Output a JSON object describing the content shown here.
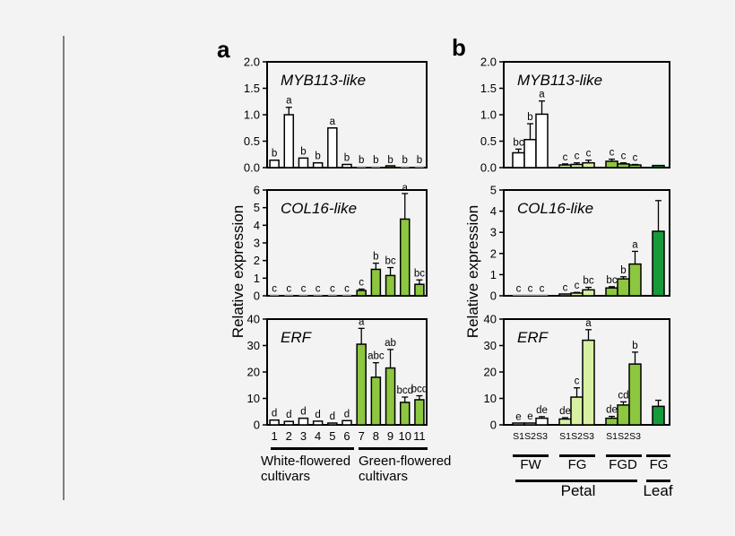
{
  "figure": {
    "background": "#f3f3f4",
    "divider_color": "#7f7f7f",
    "colors": {
      "white": "#ffffff",
      "light_green": "#d7f0a2",
      "mid_green": "#8dc63f",
      "dark_green": "#179a3a",
      "bar_stroke": "#000000",
      "faint_bar": "#9a9a9a"
    }
  },
  "panel_a": {
    "label": "a",
    "ylabel": "Relative expression",
    "cultivar_groups": [
      {
        "line1": "White-flowered",
        "line2": "cultivars"
      },
      {
        "line1": "Green-flowered",
        "line2": "cultivars"
      }
    ]
  },
  "panel_b": {
    "label": "b",
    "ylabel": "Relative expression",
    "stage_labels": [
      "S1",
      "S2",
      "S3"
    ],
    "tissue_labels": [
      "FW",
      "FG",
      "FGD",
      "FG"
    ],
    "organ_labels": [
      "Petal",
      "Leaf"
    ]
  },
  "chart_data": [
    {
      "panel": "a",
      "type": "bar",
      "title": "MYB113-like",
      "ylim": [
        0,
        2.0
      ],
      "yticks": {
        "values": [
          0,
          0.5,
          1.0,
          1.5,
          2.0
        ],
        "labels": [
          "0.0",
          "0.5",
          "1.0",
          "1.5",
          "2.0"
        ]
      },
      "categories": [
        "1",
        "2",
        "3",
        "4",
        "5",
        "6",
        "7",
        "8",
        "9",
        "10",
        "11"
      ],
      "bars": [
        {
          "category": "1",
          "value": 0.14,
          "error": 0,
          "letter": "b",
          "color": "white"
        },
        {
          "category": "2",
          "value": 1.0,
          "error": 0.14,
          "letter": "a",
          "color": "white"
        },
        {
          "category": "3",
          "value": 0.18,
          "error": 0,
          "letter": "b",
          "color": "white"
        },
        {
          "category": "4",
          "value": 0.09,
          "error": 0,
          "letter": "b",
          "color": "white"
        },
        {
          "category": "5",
          "value": 0.75,
          "error": 0,
          "letter": "a",
          "color": "white"
        },
        {
          "category": "6",
          "value": 0.06,
          "error": 0,
          "letter": "b",
          "color": "white"
        },
        {
          "category": "7",
          "value": 0.015,
          "error": 0,
          "letter": "b",
          "color": "mid_green"
        },
        {
          "category": "8",
          "value": 0.015,
          "error": 0,
          "letter": "b",
          "color": "mid_green"
        },
        {
          "category": "9",
          "value": 0.02,
          "error": 0,
          "letter": "b",
          "color": "mid_green"
        },
        {
          "category": "10",
          "value": 0.015,
          "error": 0,
          "letter": "b",
          "color": "mid_green"
        },
        {
          "category": "11",
          "value": 0.015,
          "error": 0,
          "letter": "b",
          "color": "mid_green"
        }
      ]
    },
    {
      "panel": "a",
      "type": "bar",
      "title": "COL16-like",
      "ylim": [
        0,
        6
      ],
      "yticks": {
        "values": [
          0,
          1,
          2,
          3,
          4,
          5,
          6
        ],
        "labels": [
          "0",
          "1",
          "2",
          "3",
          "4",
          "5",
          "6"
        ]
      },
      "categories": [
        "1",
        "2",
        "3",
        "4",
        "5",
        "6",
        "7",
        "8",
        "9",
        "10",
        "11"
      ],
      "bars": [
        {
          "category": "1",
          "value": 0.03,
          "error": 0,
          "letter": "c",
          "color": "white"
        },
        {
          "category": "2",
          "value": 0.03,
          "error": 0,
          "letter": "c",
          "color": "white"
        },
        {
          "category": "3",
          "value": 0.03,
          "error": 0,
          "letter": "c",
          "color": "white"
        },
        {
          "category": "4",
          "value": 0.03,
          "error": 0,
          "letter": "c",
          "color": "white"
        },
        {
          "category": "5",
          "value": 0.03,
          "error": 0,
          "letter": "c",
          "color": "white"
        },
        {
          "category": "6",
          "value": 0.03,
          "error": 0,
          "letter": "c",
          "color": "white"
        },
        {
          "category": "7",
          "value": 0.3,
          "error": 0.08,
          "letter": "c",
          "color": "mid_green"
        },
        {
          "category": "8",
          "value": 1.5,
          "error": 0.35,
          "letter": "b",
          "color": "mid_green"
        },
        {
          "category": "9",
          "value": 1.15,
          "error": 0.45,
          "letter": "bc",
          "color": "mid_green"
        },
        {
          "category": "10",
          "value": 4.35,
          "error": 1.45,
          "letter": "a",
          "color": "mid_green"
        },
        {
          "category": "11",
          "value": 0.65,
          "error": 0.25,
          "letter": "bc",
          "color": "mid_green"
        }
      ]
    },
    {
      "panel": "a",
      "type": "bar",
      "title": "ERF",
      "ylim": [
        0,
        40
      ],
      "yticks": {
        "values": [
          0,
          10,
          20,
          30,
          40
        ],
        "labels": [
          "0",
          "10",
          "20",
          "30",
          "40"
        ]
      },
      "categories": [
        "1",
        "2",
        "3",
        "4",
        "5",
        "6",
        "7",
        "8",
        "9",
        "10",
        "11"
      ],
      "bars": [
        {
          "category": "1",
          "value": 1.8,
          "error": 0,
          "letter": "d",
          "color": "white"
        },
        {
          "category": "2",
          "value": 1.3,
          "error": 0,
          "letter": "d",
          "color": "white"
        },
        {
          "category": "3",
          "value": 2.5,
          "error": 0,
          "letter": "d",
          "color": "white"
        },
        {
          "category": "4",
          "value": 1.4,
          "error": 0,
          "letter": "d",
          "color": "white"
        },
        {
          "category": "5",
          "value": 0.6,
          "error": 0,
          "letter": "d",
          "color": "white"
        },
        {
          "category": "6",
          "value": 1.6,
          "error": 0,
          "letter": "d",
          "color": "white"
        },
        {
          "category": "7",
          "value": 30.5,
          "error": 6.0,
          "letter": "a",
          "color": "mid_green"
        },
        {
          "category": "8",
          "value": 18.0,
          "error": 5.5,
          "letter": "abc",
          "color": "mid_green"
        },
        {
          "category": "9",
          "value": 21.5,
          "error": 7.0,
          "letter": "ab",
          "color": "mid_green"
        },
        {
          "category": "10",
          "value": 8.5,
          "error": 2.0,
          "letter": "bcd",
          "color": "mid_green"
        },
        {
          "category": "11",
          "value": 9.5,
          "error": 1.5,
          "letter": "bcd",
          "color": "mid_green"
        }
      ]
    },
    {
      "panel": "b",
      "type": "bar",
      "title": "MYB113-like",
      "ylim": [
        0,
        2.0
      ],
      "yticks": {
        "values": [
          0,
          0.5,
          1.0,
          1.5,
          2.0
        ],
        "labels": [
          "0.0",
          "0.5",
          "1.0",
          "1.5",
          "2.0"
        ]
      },
      "categories": [
        "FW-S1",
        "FW-S2",
        "FW-S3",
        "FG-S1",
        "FG-S2",
        "FG-S3",
        "FGD-S1",
        "FGD-S2",
        "FGD-S3",
        "FG-Leaf"
      ],
      "bars": [
        {
          "category": "FW-S1",
          "value": 0.28,
          "error": 0.07,
          "letter": "bc",
          "color": "white"
        },
        {
          "category": "FW-S2",
          "value": 0.53,
          "error": 0.3,
          "letter": "b",
          "color": "white"
        },
        {
          "category": "FW-S3",
          "value": 1.01,
          "error": 0.25,
          "letter": "a",
          "color": "white"
        },
        {
          "category": "FG-S1",
          "value": 0.05,
          "error": 0.02,
          "letter": "c",
          "color": "light_green"
        },
        {
          "category": "FG-S2",
          "value": 0.06,
          "error": 0.03,
          "letter": "c",
          "color": "light_green"
        },
        {
          "category": "FG-S3",
          "value": 0.09,
          "error": 0.05,
          "letter": "c",
          "color": "light_green"
        },
        {
          "category": "FGD-S1",
          "value": 0.12,
          "error": 0.04,
          "letter": "c",
          "color": "mid_green"
        },
        {
          "category": "FGD-S2",
          "value": 0.07,
          "error": 0.02,
          "letter": "c",
          "color": "mid_green"
        },
        {
          "category": "FGD-S3",
          "value": 0.05,
          "error": 0.01,
          "letter": "c",
          "color": "mid_green"
        },
        {
          "category": "FG-Leaf",
          "value": 0.04,
          "error": 0,
          "letter": "",
          "color": "dark_green"
        }
      ]
    },
    {
      "panel": "b",
      "type": "bar",
      "title": "COL16-like",
      "ylim": [
        0,
        5
      ],
      "yticks": {
        "values": [
          0,
          1,
          2,
          3,
          4,
          5
        ],
        "labels": [
          "0",
          "1",
          "2",
          "3",
          "4",
          "5"
        ]
      },
      "categories": [
        "FW-S1",
        "FW-S2",
        "FW-S3",
        "FG-S1",
        "FG-S2",
        "FG-S3",
        "FGD-S1",
        "FGD-S2",
        "FGD-S3",
        "FG-Leaf"
      ],
      "bars": [
        {
          "category": "FW-S1",
          "value": 0.02,
          "error": 0,
          "letter": "c",
          "color": "white"
        },
        {
          "category": "FW-S2",
          "value": 0.02,
          "error": 0,
          "letter": "c",
          "color": "white"
        },
        {
          "category": "FW-S3",
          "value": 0.02,
          "error": 0,
          "letter": "c",
          "color": "white"
        },
        {
          "category": "FG-S1",
          "value": 0.06,
          "error": 0,
          "letter": "c",
          "color": "light_green"
        },
        {
          "category": "FG-S2",
          "value": 0.13,
          "error": 0.03,
          "letter": "c",
          "color": "light_green"
        },
        {
          "category": "FG-S3",
          "value": 0.28,
          "error": 0.12,
          "letter": "bc",
          "color": "light_green"
        },
        {
          "category": "FGD-S1",
          "value": 0.37,
          "error": 0.06,
          "letter": "bc",
          "color": "mid_green"
        },
        {
          "category": "FGD-S2",
          "value": 0.8,
          "error": 0.1,
          "letter": "b",
          "color": "mid_green"
        },
        {
          "category": "FGD-S3",
          "value": 1.5,
          "error": 0.6,
          "letter": "a",
          "color": "mid_green"
        },
        {
          "category": "FG-Leaf",
          "value": 3.05,
          "error": 1.45,
          "letter": "",
          "color": "dark_green"
        }
      ]
    },
    {
      "panel": "b",
      "type": "bar",
      "title": "ERF",
      "ylim": [
        0,
        40
      ],
      "yticks": {
        "values": [
          0,
          10,
          20,
          30,
          40
        ],
        "labels": [
          "0",
          "10",
          "20",
          "30",
          "40"
        ]
      },
      "categories": [
        "FW-S1",
        "FW-S2",
        "FW-S3",
        "FG-S1",
        "FG-S2",
        "FG-S3",
        "FGD-S1",
        "FGD-S2",
        "FGD-S3",
        "FG-Leaf"
      ],
      "bars": [
        {
          "category": "FW-S1",
          "value": 0.5,
          "error": 0,
          "letter": "e",
          "color": "white"
        },
        {
          "category": "FW-S2",
          "value": 0.6,
          "error": 0,
          "letter": "e",
          "color": "white"
        },
        {
          "category": "FW-S3",
          "value": 2.5,
          "error": 0.6,
          "letter": "de",
          "color": "white"
        },
        {
          "category": "FG-S1",
          "value": 2.2,
          "error": 0.5,
          "letter": "de",
          "color": "light_green"
        },
        {
          "category": "FG-S2",
          "value": 10.5,
          "error": 3.5,
          "letter": "c",
          "color": "light_green"
        },
        {
          "category": "FG-S3",
          "value": 32.0,
          "error": 4.0,
          "letter": "a",
          "color": "light_green"
        },
        {
          "category": "FGD-S1",
          "value": 2.5,
          "error": 0.7,
          "letter": "de",
          "color": "mid_green"
        },
        {
          "category": "FGD-S2",
          "value": 7.5,
          "error": 1.2,
          "letter": "cd",
          "color": "mid_green"
        },
        {
          "category": "FGD-S3",
          "value": 23.0,
          "error": 4.5,
          "letter": "b",
          "color": "mid_green"
        },
        {
          "category": "FG-Leaf",
          "value": 7.0,
          "error": 2.3,
          "letter": "",
          "color": "dark_green"
        }
      ]
    }
  ]
}
